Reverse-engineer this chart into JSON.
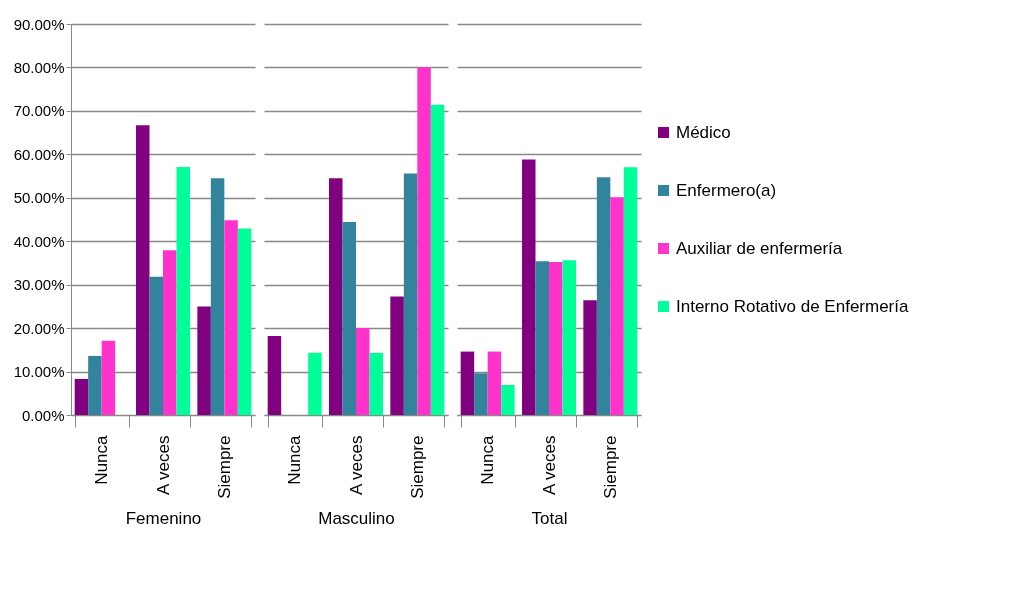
{
  "chart_data": [
    {
      "type": "bar",
      "xlabel": "Femenino",
      "categories": [
        "Nunca",
        "A veces",
        "Siempre"
      ],
      "ylim": [
        0,
        90
      ],
      "legend": "right",
      "yticks": [
        {
          "value": 0,
          "label": "0.00%"
        },
        {
          "value": 10,
          "label": "10.00%"
        },
        {
          "value": 20,
          "label": "20.00%"
        },
        {
          "value": 30,
          "label": "30.00%"
        },
        {
          "value": 40,
          "label": "40.00%"
        },
        {
          "value": 50,
          "label": "50.00%"
        },
        {
          "value": 60,
          "label": "60.00%"
        },
        {
          "value": 70,
          "label": "70.00%"
        },
        {
          "value": 80,
          "label": "80.00%"
        },
        {
          "value": 90,
          "label": "90.00%"
        }
      ],
      "grid": "y",
      "series": [
        {
          "name": "Médico",
          "color": "#800080",
          "values": [
            8.3,
            66.7,
            25.0
          ]
        },
        {
          "name": "Enfermero(a)",
          "color": "#31849b",
          "values": [
            13.6,
            31.8,
            54.5
          ]
        },
        {
          "name": "Auxiliar de enfermería",
          "color": "#ff33cc",
          "values": [
            17.1,
            37.9,
            44.8
          ]
        },
        {
          "name": "Interno Rotativo de Enfermería",
          "color": "#00ff99",
          "values": [
            0,
            57.1,
            42.9
          ]
        }
      ]
    },
    {
      "type": "bar",
      "xlabel": "Masculino",
      "categories": [
        "Nunca",
        "A veces",
        "Siempre"
      ],
      "ylim": [
        0,
        90
      ],
      "tick_labels": "x",
      "grid": "y",
      "legend": "right",
      "series": [
        {
          "name": "Médico",
          "color": "#800080",
          "values": [
            18.2,
            54.5,
            27.3
          ]
        },
        {
          "name": "Enfermero(a)",
          "color": "#31849b",
          "values": [
            0,
            44.4,
            55.6
          ]
        },
        {
          "name": "Auxiliar de enfermería",
          "color": "#ff33cc",
          "values": [
            0,
            20.0,
            80.0
          ]
        },
        {
          "name": "Interno Rotativo de Enfermería",
          "color": "#00ff99",
          "values": [
            14.3,
            14.3,
            71.4
          ]
        }
      ]
    },
    {
      "type": "bar",
      "xlabel": "Total",
      "categories": [
        "Nunca",
        "A veces",
        "Siempre"
      ],
      "ylim": [
        0,
        90
      ],
      "tick_labels": "x",
      "grid": "y",
      "legend": "right",
      "series": [
        {
          "name": "Médico",
          "color": "#800080",
          "values": [
            14.6,
            58.8,
            26.4
          ]
        },
        {
          "name": "Enfermero(a)",
          "color": "#31849b",
          "values": [
            9.6,
            35.4,
            54.7
          ]
        },
        {
          "name": "Auxiliar de enfermería",
          "color": "#ff33cc",
          "values": [
            14.6,
            35.2,
            50.1
          ]
        },
        {
          "name": "Interno Rotativo de Enfermería",
          "color": "#00ff99",
          "values": [
            6.9,
            35.6,
            57.0
          ]
        }
      ]
    }
  ]
}
